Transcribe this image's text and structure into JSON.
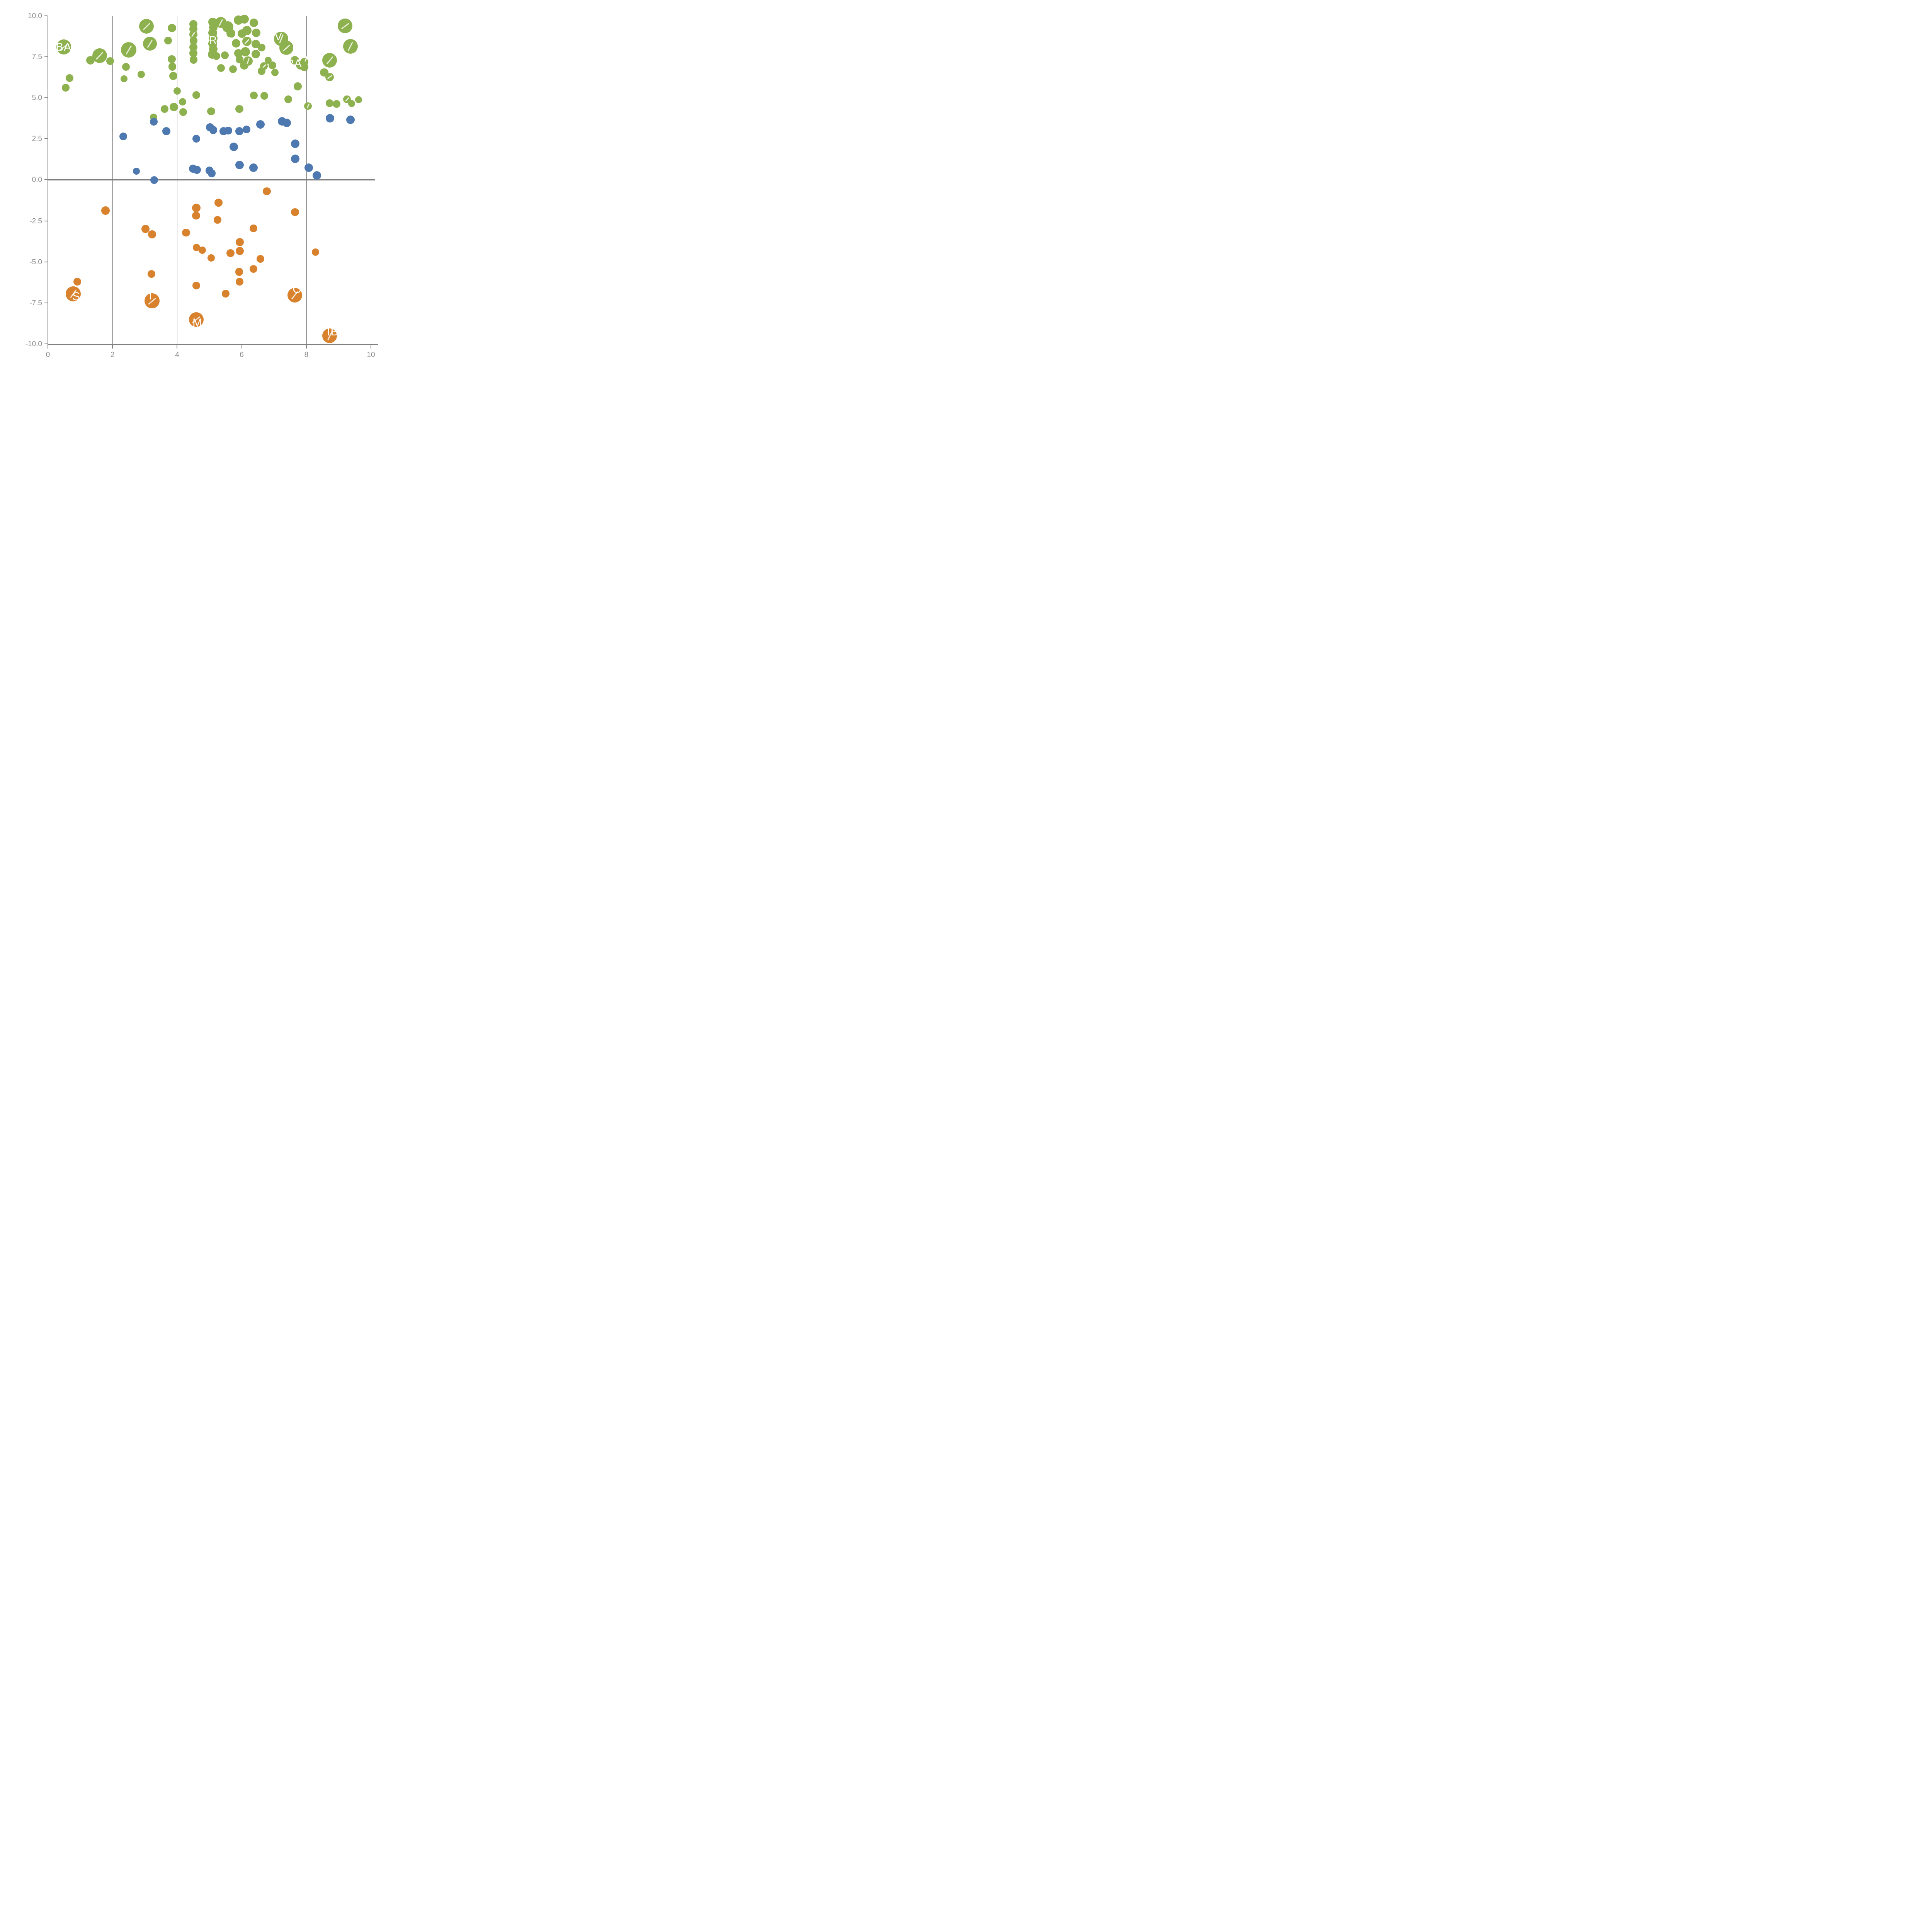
{
  "chart_data": {
    "type": "scatter",
    "title": "",
    "xlabel": "",
    "ylabel": "",
    "xlim": [
      0,
      10
    ],
    "ylim": [
      -10,
      10
    ],
    "grid": "vertical-only",
    "legend": "none",
    "x_ticks": [
      {
        "label": "0",
        "value": 0
      },
      {
        "label": "2",
        "value": 2
      },
      {
        "label": "4",
        "value": 4
      },
      {
        "label": "6",
        "value": 6
      },
      {
        "label": "8",
        "value": 8
      },
      {
        "label": "10",
        "value": 10
      }
    ],
    "y_ticks": [
      {
        "label": "10.0",
        "value": 10
      },
      {
        "label": "7.5",
        "value": 7.5
      },
      {
        "label": "5.0",
        "value": 5
      },
      {
        "label": "2.5",
        "value": 2.5
      },
      {
        "label": "0.0",
        "value": 0
      },
      {
        "label": "-2.5",
        "value": -2.5
      },
      {
        "label": "-5.0",
        "value": -5
      },
      {
        "label": "-7.5",
        "value": -7.5
      },
      {
        "label": "-10.0",
        "value": -10
      }
    ],
    "grid_x_values": [
      2,
      4,
      6,
      8
    ],
    "zero_line_y": 0,
    "series": [
      {
        "name": "green",
        "color": "#8DB14E",
        "points": [
          {
            "x": 0.49,
            "y": 8.1,
            "r": 96,
            "line": true
          },
          {
            "x": 0.55,
            "y": 5.62,
            "r": 50
          },
          {
            "x": 0.67,
            "y": 6.2,
            "r": 50
          },
          {
            "x": 1.32,
            "y": 7.28,
            "r": 55
          },
          {
            "x": 1.6,
            "y": 7.57,
            "r": 95,
            "line": true
          },
          {
            "x": 1.93,
            "y": 7.25,
            "r": 50
          },
          {
            "x": 2.36,
            "y": 6.16,
            "r": 46
          },
          {
            "x": 2.42,
            "y": 6.9,
            "r": 50
          },
          {
            "x": 2.5,
            "y": 7.92,
            "r": 100,
            "line": true
          },
          {
            "x": 2.89,
            "y": 6.43,
            "r": 48
          },
          {
            "x": 3.05,
            "y": 9.36,
            "r": 95,
            "line": true
          },
          {
            "x": 3.16,
            "y": 8.31,
            "r": 90,
            "line": true
          },
          {
            "x": 3.72,
            "y": 8.49,
            "r": 52
          },
          {
            "x": 3.84,
            "y": 9.25,
            "r": 53
          },
          {
            "x": 3.83,
            "y": 7.36,
            "r": 52
          },
          {
            "x": 3.85,
            "y": 6.9,
            "r": 52
          },
          {
            "x": 3.88,
            "y": 6.34,
            "r": 52
          },
          {
            "x": 4.0,
            "y": 5.41,
            "r": 48
          },
          {
            "x": 4.5,
            "y": 9.49,
            "r": 52
          },
          {
            "x": 4.5,
            "y": 9.2,
            "r": 52
          },
          {
            "x": 4.5,
            "y": 8.86,
            "r": 52,
            "line": true
          },
          {
            "x": 4.51,
            "y": 8.48,
            "r": 52
          },
          {
            "x": 4.5,
            "y": 8.09,
            "r": 52
          },
          {
            "x": 4.5,
            "y": 7.72,
            "r": 52
          },
          {
            "x": 4.51,
            "y": 7.33,
            "r": 52
          },
          {
            "x": 4.59,
            "y": 5.18,
            "r": 50
          },
          {
            "x": 5.1,
            "y": 9.62,
            "r": 56
          },
          {
            "x": 5.12,
            "y": 9.3,
            "r": 56
          },
          {
            "x": 5.1,
            "y": 8.97,
            "r": 56
          },
          {
            "x": 5.12,
            "y": 8.64,
            "r": 56
          },
          {
            "x": 5.1,
            "y": 8.3,
            "r": 56
          },
          {
            "x": 5.12,
            "y": 7.97,
            "r": 56
          },
          {
            "x": 5.08,
            "y": 7.64,
            "r": 56
          },
          {
            "x": 5.35,
            "y": 9.6,
            "r": 72,
            "line": true
          },
          {
            "x": 5.57,
            "y": 9.33,
            "r": 72
          },
          {
            "x": 5.21,
            "y": 7.56,
            "r": 50
          },
          {
            "x": 5.48,
            "y": 7.59,
            "r": 50
          },
          {
            "x": 5.36,
            "y": 6.82,
            "r": 50
          },
          {
            "x": 5.73,
            "y": 6.75,
            "r": 50
          },
          {
            "x": 5.66,
            "y": 8.93,
            "r": 58
          },
          {
            "x": 5.83,
            "y": 8.34,
            "r": 55
          },
          {
            "x": 5.9,
            "y": 7.71,
            "r": 55
          },
          {
            "x": 6.08,
            "y": 6.98,
            "r": 55
          },
          {
            "x": 5.9,
            "y": 9.74,
            "r": 60
          },
          {
            "x": 6.08,
            "y": 9.79,
            "r": 58
          },
          {
            "x": 6.16,
            "y": 9.11,
            "r": 60
          },
          {
            "x": 6.0,
            "y": 8.91,
            "r": 55
          },
          {
            "x": 6.16,
            "y": 8.44,
            "r": 60,
            "line": true
          },
          {
            "x": 6.11,
            "y": 7.82,
            "r": 60
          },
          {
            "x": 6.19,
            "y": 7.25,
            "r": 60,
            "line": true
          },
          {
            "x": 5.93,
            "y": 7.35,
            "r": 50
          },
          {
            "x": 6.37,
            "y": 9.58,
            "r": 55
          },
          {
            "x": 6.45,
            "y": 8.96,
            "r": 55
          },
          {
            "x": 6.43,
            "y": 8.28,
            "r": 55
          },
          {
            "x": 6.43,
            "y": 7.66,
            "r": 55
          },
          {
            "x": 6.61,
            "y": 8.07,
            "r": 50
          },
          {
            "x": 6.69,
            "y": 6.93,
            "r": 50,
            "line": true
          },
          {
            "x": 6.61,
            "y": 6.63,
            "r": 50
          },
          {
            "x": 6.95,
            "y": 6.99,
            "r": 50
          },
          {
            "x": 7.03,
            "y": 6.54,
            "r": 48
          },
          {
            "x": 6.82,
            "y": 7.29,
            "r": 46
          },
          {
            "x": 7.22,
            "y": 8.6,
            "r": 92,
            "line": true
          },
          {
            "x": 7.38,
            "y": 8.05,
            "r": 92,
            "line": true
          },
          {
            "x": 7.64,
            "y": 7.3,
            "r": 55
          },
          {
            "x": 7.82,
            "y": 6.99,
            "r": 58
          },
          {
            "x": 7.73,
            "y": 5.7,
            "r": 52
          },
          {
            "x": 7.44,
            "y": 4.91,
            "r": 52
          },
          {
            "x": 5.93,
            "y": 4.32,
            "r": 52
          },
          {
            "x": 6.37,
            "y": 5.15,
            "r": 50
          },
          {
            "x": 6.7,
            "y": 5.12,
            "r": 50
          },
          {
            "x": 8.05,
            "y": 4.5,
            "r": 48,
            "line": true
          },
          {
            "x": 7.94,
            "y": 7.18,
            "r": 53
          },
          {
            "x": 7.94,
            "y": 6.88,
            "r": 53
          },
          {
            "x": 8.55,
            "y": 6.55,
            "r": 54
          },
          {
            "x": 8.72,
            "y": 6.27,
            "r": 54,
            "line": true
          },
          {
            "x": 8.72,
            "y": 7.3,
            "r": 95,
            "line": true
          },
          {
            "x": 9.36,
            "y": 8.15,
            "r": 95,
            "line": true
          },
          {
            "x": 9.2,
            "y": 9.38,
            "r": 95,
            "line": true
          },
          {
            "x": 9.26,
            "y": 4.92,
            "r": 50,
            "line": true
          },
          {
            "x": 9.4,
            "y": 4.65,
            "r": 45
          },
          {
            "x": 9.62,
            "y": 4.88,
            "r": 45
          },
          {
            "x": 8.72,
            "y": 4.67,
            "r": 50
          },
          {
            "x": 8.93,
            "y": 4.64,
            "r": 50
          },
          {
            "x": 3.27,
            "y": 3.82,
            "r": 48
          },
          {
            "x": 3.61,
            "y": 4.32,
            "r": 50
          },
          {
            "x": 3.9,
            "y": 4.45,
            "r": 55
          },
          {
            "x": 4.17,
            "y": 4.75,
            "r": 48
          },
          {
            "x": 4.19,
            "y": 4.13,
            "r": 50
          },
          {
            "x": 5.05,
            "y": 4.18,
            "r": 52
          }
        ]
      },
      {
        "name": "blue",
        "color": "#4E79B0",
        "points": [
          {
            "x": 2.33,
            "y": 2.64,
            "r": 50
          },
          {
            "x": 3.28,
            "y": 3.55,
            "r": 50
          },
          {
            "x": 2.74,
            "y": 0.52,
            "r": 45
          },
          {
            "x": 3.29,
            "y": -0.02,
            "r": 50
          },
          {
            "x": 3.67,
            "y": 2.96,
            "r": 52
          },
          {
            "x": 4.59,
            "y": 2.5,
            "r": 50
          },
          {
            "x": 5.02,
            "y": 3.2,
            "r": 52
          },
          {
            "x": 5.12,
            "y": 3.04,
            "r": 52
          },
          {
            "x": 5.44,
            "y": 2.97,
            "r": 52
          },
          {
            "x": 5.58,
            "y": 3.0,
            "r": 52
          },
          {
            "x": 5.75,
            "y": 2.01,
            "r": 55
          },
          {
            "x": 5.93,
            "y": 2.96,
            "r": 52
          },
          {
            "x": 6.15,
            "y": 3.07,
            "r": 52
          },
          {
            "x": 6.58,
            "y": 3.39,
            "r": 55
          },
          {
            "x": 7.25,
            "y": 3.56,
            "r": 55
          },
          {
            "x": 7.39,
            "y": 3.48,
            "r": 55
          },
          {
            "x": 7.66,
            "y": 2.2,
            "r": 55
          },
          {
            "x": 5.93,
            "y": 0.9,
            "r": 55
          },
          {
            "x": 6.36,
            "y": 0.74,
            "r": 55
          },
          {
            "x": 7.66,
            "y": 1.28,
            "r": 55
          },
          {
            "x": 8.07,
            "y": 0.74,
            "r": 55
          },
          {
            "x": 8.33,
            "y": 0.28,
            "r": 55
          },
          {
            "x": 4.49,
            "y": 0.68,
            "r": 52
          },
          {
            "x": 4.61,
            "y": 0.61,
            "r": 52
          },
          {
            "x": 5.0,
            "y": 0.57,
            "r": 52
          },
          {
            "x": 5.07,
            "y": 0.4,
            "r": 52
          },
          {
            "x": 8.73,
            "y": 3.75,
            "r": 55
          },
          {
            "x": 9.37,
            "y": 3.67,
            "r": 55
          }
        ]
      },
      {
        "name": "orange",
        "color": "#D9822E",
        "points": [
          {
            "x": 1.78,
            "y": -1.87,
            "r": 54
          },
          {
            "x": 3.02,
            "y": -2.99,
            "r": 52
          },
          {
            "x": 3.22,
            "y": -3.33,
            "r": 52
          },
          {
            "x": 4.59,
            "y": -1.7,
            "r": 55
          },
          {
            "x": 4.59,
            "y": -2.18,
            "r": 52
          },
          {
            "x": 5.28,
            "y": -1.4,
            "r": 52
          },
          {
            "x": 5.25,
            "y": -2.44,
            "r": 52
          },
          {
            "x": 4.28,
            "y": -3.22,
            "r": 52
          },
          {
            "x": 4.6,
            "y": -4.13,
            "r": 48
          },
          {
            "x": 4.78,
            "y": -4.3,
            "r": 48
          },
          {
            "x": 5.05,
            "y": -4.76,
            "r": 48
          },
          {
            "x": 5.65,
            "y": -4.47,
            "r": 52
          },
          {
            "x": 5.94,
            "y": -3.79,
            "r": 52
          },
          {
            "x": 5.94,
            "y": -4.33,
            "r": 52
          },
          {
            "x": 6.78,
            "y": -0.7,
            "r": 52
          },
          {
            "x": 7.65,
            "y": -1.97,
            "r": 52
          },
          {
            "x": 6.36,
            "y": -2.95,
            "r": 50
          },
          {
            "x": 6.58,
            "y": -4.83,
            "r": 50
          },
          {
            "x": 8.28,
            "y": -4.41,
            "r": 48
          },
          {
            "x": 6.36,
            "y": -5.44,
            "r": 50
          },
          {
            "x": 5.92,
            "y": -5.61,
            "r": 52
          },
          {
            "x": 5.93,
            "y": -6.22,
            "r": 50
          },
          {
            "x": 0.91,
            "y": -6.21,
            "r": 50
          },
          {
            "x": 0.78,
            "y": -6.95,
            "r": 97,
            "line": true
          },
          {
            "x": 3.21,
            "y": -5.73,
            "r": 50
          },
          {
            "x": 3.22,
            "y": -7.38,
            "r": 97,
            "line": true
          },
          {
            "x": 4.59,
            "y": -6.45,
            "r": 50
          },
          {
            "x": 5.5,
            "y": -6.93,
            "r": 50
          },
          {
            "x": 4.59,
            "y": -8.53,
            "r": 95,
            "line": true
          },
          {
            "x": 7.64,
            "y": -7.03,
            "r": 95,
            "line": true
          },
          {
            "x": 8.72,
            "y": -9.5,
            "r": 95,
            "line": true
          }
        ]
      }
    ],
    "point_labels": [
      {
        "text": "BA",
        "x": 0.49,
        "y": 8.08,
        "size": 29
      },
      {
        "text": "RE",
        "x": 5.23,
        "y": 8.52,
        "size": 28
      },
      {
        "text": "E",
        "x": 5.6,
        "y": 8.5,
        "size": 28
      },
      {
        "text": "V",
        "x": 7.14,
        "y": 8.74,
        "size": 28
      },
      {
        "text": "RA",
        "x": 7.62,
        "y": 7.1,
        "size": 28
      },
      {
        "text": "A",
        "x": 8.06,
        "y": 7.43,
        "size": 28
      },
      {
        "text": "S",
        "x": 0.88,
        "y": -7.12,
        "size": 30
      },
      {
        "text": "T",
        "x": 3.18,
        "y": -7.08,
        "size": 28
      },
      {
        "text": "M",
        "x": 4.63,
        "y": -8.74,
        "size": 30
      },
      {
        "text": "O",
        "x": 7.72,
        "y": -6.68,
        "size": 30
      },
      {
        "text": "IB",
        "x": 8.82,
        "y": -9.28,
        "size": 30
      }
    ]
  },
  "colors": {
    "green": "#8DB14E",
    "blue": "#4E79B0",
    "orange": "#D9822E",
    "axis": "#808080",
    "grid": "#6F6F6F",
    "tick_text": "#8A8A8A",
    "label_text": "#FFFFFF",
    "background": "#FFFFFF"
  }
}
